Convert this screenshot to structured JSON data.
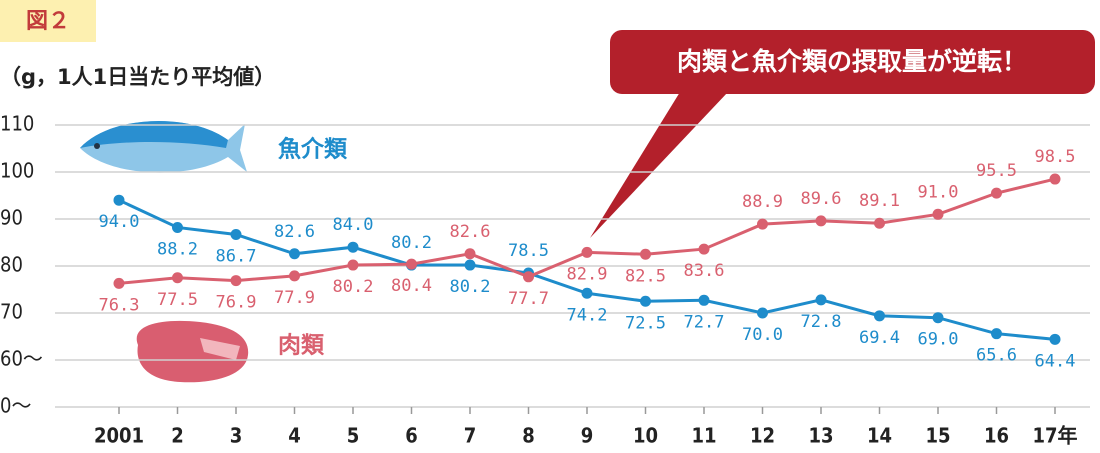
{
  "chart_data": {
    "type": "line",
    "badge": "図２",
    "y_unit": "（g，1人1日当たり平均値）",
    "annotation": "肉類と魚介類の摂取量が逆転！",
    "categories": [
      "2001",
      "2",
      "3",
      "4",
      "5",
      "6",
      "7",
      "8",
      "9",
      "10",
      "11",
      "12",
      "13",
      "14",
      "15",
      "16",
      "17年"
    ],
    "series": [
      {
        "name": "魚介類",
        "color": "#1e8ccb",
        "values": [
          94.0,
          88.2,
          86.7,
          82.6,
          84.0,
          80.2,
          80.2,
          78.5,
          74.2,
          72.5,
          72.7,
          70.0,
          72.8,
          69.4,
          69.0,
          65.6,
          64.4
        ],
        "value_labels": [
          "94.0",
          "88.2",
          "86.7",
          "82.6",
          "84.0",
          "80.2",
          "80.2",
          "78.5",
          "74.2",
          "72.5",
          "72.7",
          "70.0",
          "72.8",
          "69.4",
          "69.0",
          "65.6",
          "64.4"
        ]
      },
      {
        "name": "肉類",
        "color": "#d9606f",
        "values": [
          76.3,
          77.5,
          76.9,
          77.9,
          80.2,
          80.4,
          82.6,
          77.7,
          82.9,
          82.5,
          83.6,
          88.9,
          89.6,
          89.1,
          91.0,
          95.5,
          98.5
        ],
        "value_labels": [
          "76.3",
          "77.5",
          "76.9",
          "77.9",
          "80.2",
          "80.4",
          "82.6",
          "77.7",
          "82.9",
          "82.5",
          "83.6",
          "88.9",
          "89.6",
          "89.1",
          "91.0",
          "95.5",
          "98.5"
        ]
      }
    ],
    "ylim": [
      0,
      110
    ],
    "axis_break": [
      0,
      60
    ],
    "yticks": [
      {
        "value": 0,
        "label": "0〜"
      },
      {
        "value": 60,
        "label": "60〜"
      },
      70,
      80,
      90,
      100,
      110
    ],
    "grid": true
  }
}
